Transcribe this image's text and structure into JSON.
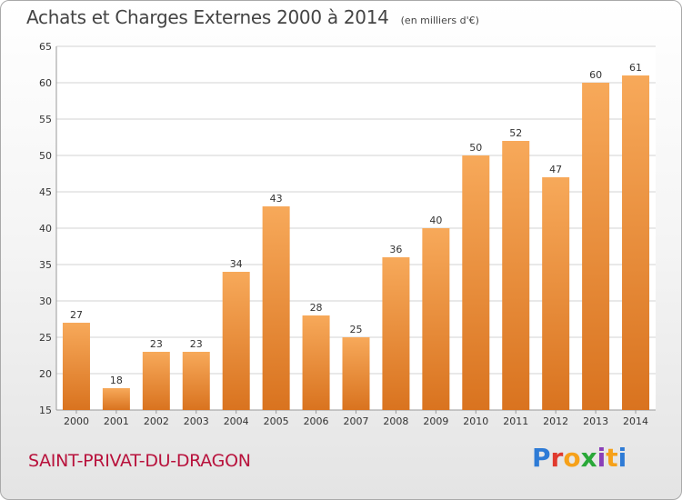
{
  "header": {
    "title": "Achats et Charges Externes 2000 à 2014",
    "subtitle": "(en milliers d'€)"
  },
  "footer": {
    "commune": "SAINT-PRIVAT-DU-DRAGON",
    "logo_text": "Proxiti",
    "logo_colors": [
      "#2e7bd6",
      "#e03a2e",
      "#f6a11a",
      "#29a838",
      "#8a3fb8",
      "#f6a11a",
      "#2e7bd6"
    ]
  },
  "colors": {
    "bar_top": "#f7a95a",
    "bar_bottom": "#d9731f",
    "grid": "#d3d3d3",
    "axis_text": "#333333"
  },
  "chart_data": {
    "type": "bar",
    "categories": [
      "2000",
      "2001",
      "2002",
      "2003",
      "2004",
      "2005",
      "2006",
      "2007",
      "2008",
      "2009",
      "2010",
      "2011",
      "2012",
      "2013",
      "2014"
    ],
    "values": [
      27,
      18,
      23,
      23,
      34,
      43,
      28,
      25,
      36,
      40,
      50,
      52,
      47,
      60,
      61
    ],
    "title": "Achats et Charges Externes 2000 à 2014",
    "subtitle": "(en milliers d'€)",
    "xlabel": "",
    "ylabel": "",
    "ylim": [
      15,
      65
    ],
    "yticks": [
      15,
      20,
      25,
      30,
      35,
      40,
      45,
      50,
      55,
      60,
      65
    ],
    "grid": true,
    "data_labels": true
  }
}
